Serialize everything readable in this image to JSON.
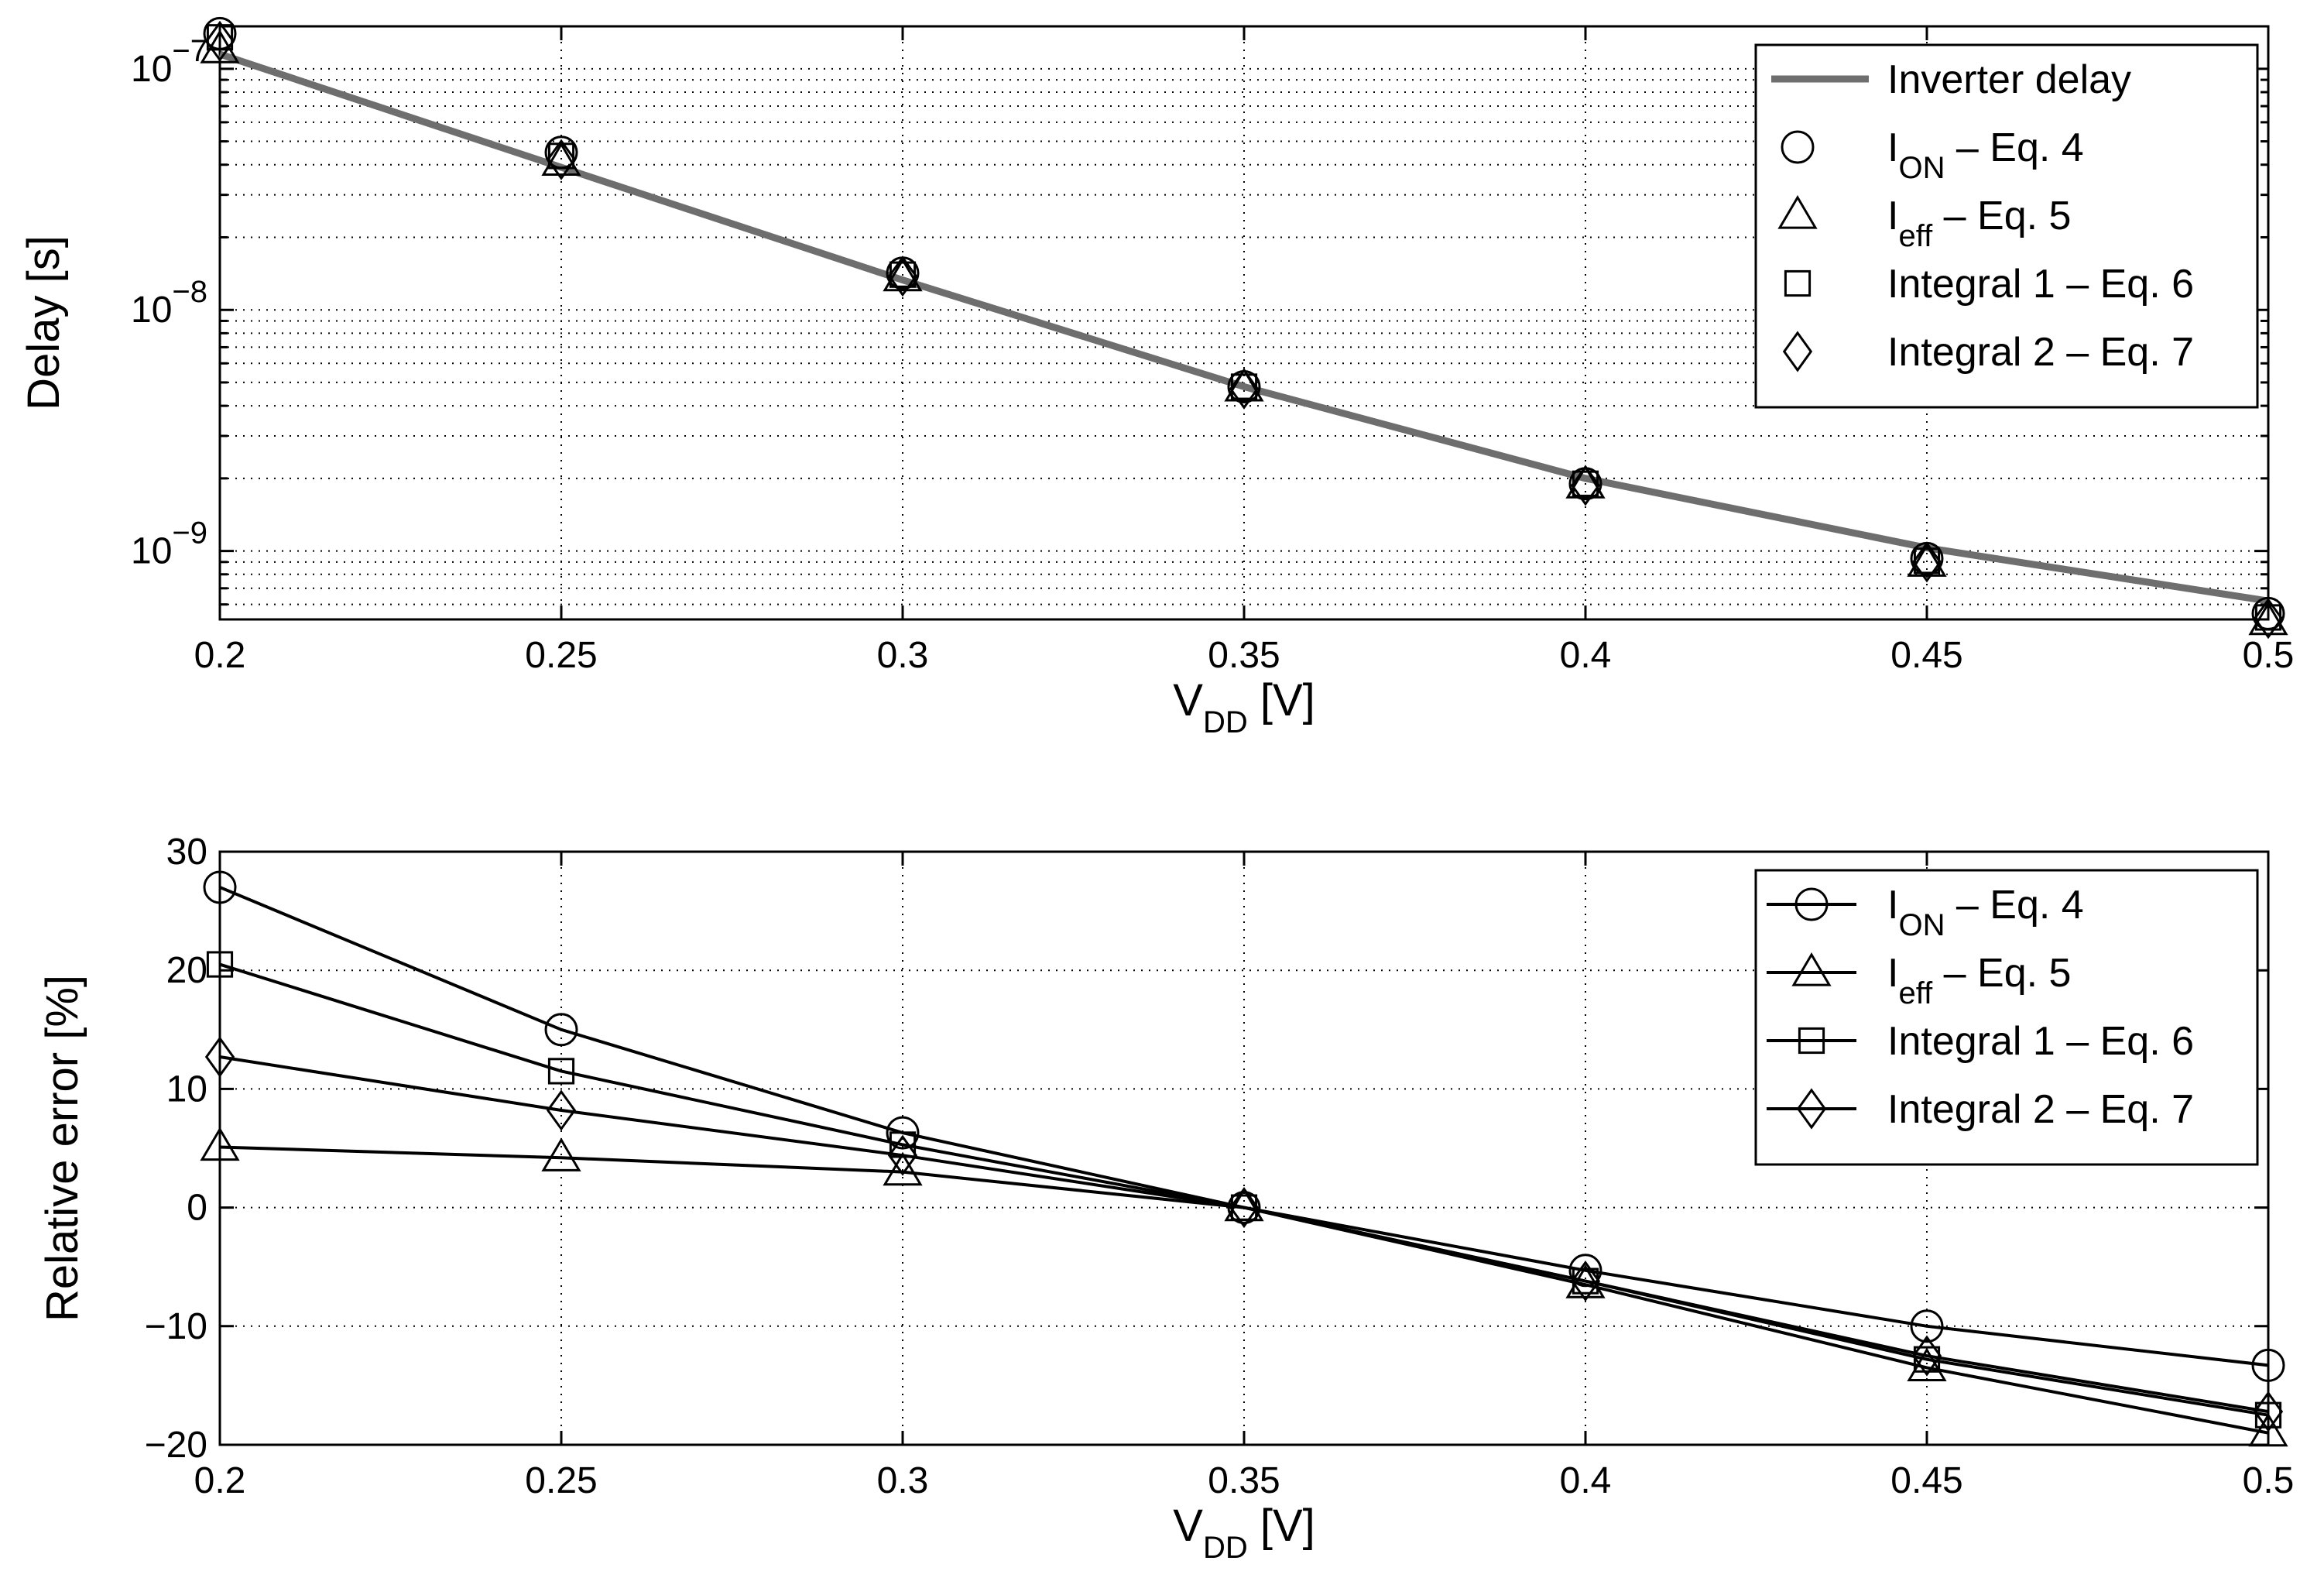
{
  "chart_data": [
    {
      "type": "line",
      "title": "",
      "xlabel": {
        "main": "V",
        "sub": "DD",
        "rest": " [V]"
      },
      "ylabel": "Delay [s]",
      "yscale": "log",
      "xlim": [
        0.2,
        0.5
      ],
      "ylim": [
        5.2e-10,
        1.5e-07
      ],
      "x": [
        0.2,
        0.25,
        0.3,
        0.35,
        0.4,
        0.45,
        0.5
      ],
      "xticklabels": [
        "0.2",
        "0.25",
        "0.3",
        "0.35",
        "0.4",
        "0.45",
        "0.5"
      ],
      "yticks": [
        {
          "value": 1e-07,
          "base": "10",
          "exp": "−7"
        },
        {
          "value": 1e-08,
          "base": "10",
          "exp": "−8"
        },
        {
          "value": 1e-09,
          "base": "10",
          "exp": "−9"
        }
      ],
      "grid": true,
      "legend_position": "top-right",
      "series": [
        {
          "name": "Inverter delay",
          "label": {
            "main": "Inverter delay",
            "sub": "",
            "rest": ""
          },
          "marker": "none",
          "line": true,
          "color": "#6e6e6e",
          "values": [
            1.15e-07,
            3.9e-08,
            1.33e-08,
            4.8e-09,
            2e-09,
            1.03e-09,
            6.2e-10
          ]
        },
        {
          "name": "I_ON – Eq. 4",
          "label": {
            "main": "I",
            "sub": "ON",
            "rest": " – Eq. 4"
          },
          "marker": "circle",
          "line": false,
          "color": "#000000",
          "values": [
            1.4e-07,
            4.5e-08,
            1.42e-08,
            4.8e-09,
            1.9e-09,
            9.3e-10,
            5.5e-10
          ]
        },
        {
          "name": "I_eff – Eq. 5",
          "label": {
            "main": "I",
            "sub": "eff",
            "rest": " – Eq. 5"
          },
          "marker": "triangle",
          "line": false,
          "color": "#000000",
          "values": [
            1.2e-07,
            4.1e-08,
            1.36e-08,
            4.75e-09,
            1.88e-09,
            8.9e-10,
            5.1e-10
          ]
        },
        {
          "name": "Integral 1 – Eq. 6",
          "label": {
            "main": "Integral 1 – Eq. 6",
            "sub": "",
            "rest": ""
          },
          "marker": "square",
          "line": false,
          "color": "#000000",
          "values": [
            1.35e-07,
            4.35e-08,
            1.4e-08,
            4.8e-09,
            1.9e-09,
            9.1e-10,
            5.3e-10
          ]
        },
        {
          "name": "Integral 2 – Eq. 7",
          "label": {
            "main": "Integral 2 – Eq. 7",
            "sub": "",
            "rest": ""
          },
          "marker": "diamond",
          "line": false,
          "color": "#000000",
          "values": [
            1.3e-07,
            4.2e-08,
            1.38e-08,
            4.7e-09,
            1.87e-09,
            9e-10,
            5.25e-10
          ]
        }
      ]
    },
    {
      "type": "line",
      "title": "",
      "xlabel": {
        "main": "V",
        "sub": "DD",
        "rest": " [V]"
      },
      "ylabel": "Relative error [%]",
      "yscale": "linear",
      "xlim": [
        0.2,
        0.5
      ],
      "ylim": [
        -20,
        30
      ],
      "x": [
        0.2,
        0.25,
        0.3,
        0.35,
        0.4,
        0.45,
        0.5
      ],
      "xticklabels": [
        "0.2",
        "0.25",
        "0.3",
        "0.35",
        "0.4",
        "0.45",
        "0.5"
      ],
      "yticks": [
        {
          "value": 30,
          "label": "30"
        },
        {
          "value": 20,
          "label": "20"
        },
        {
          "value": 10,
          "label": "10"
        },
        {
          "value": 0,
          "label": "0"
        },
        {
          "value": -10,
          "label": "−10"
        },
        {
          "value": -20,
          "label": "−20"
        }
      ],
      "grid": true,
      "legend_position": "top-right",
      "series": [
        {
          "name": "I_ON – Eq. 4",
          "label": {
            "main": "I",
            "sub": "ON",
            "rest": " – Eq. 4"
          },
          "marker": "circle",
          "line": true,
          "color": "#000000",
          "values": [
            27,
            15,
            6.3,
            0,
            -5.3,
            -10,
            -13.3
          ]
        },
        {
          "name": "I_eff – Eq. 5",
          "label": {
            "main": "I",
            "sub": "eff",
            "rest": " – Eq. 5"
          },
          "marker": "triangle",
          "line": true,
          "color": "#000000",
          "values": [
            5.1,
            4.2,
            3.0,
            0,
            -6.5,
            -13.5,
            -19
          ]
        },
        {
          "name": "Integral 1 – Eq. 6",
          "label": {
            "main": "Integral 1 – Eq. 6",
            "sub": "",
            "rest": ""
          },
          "marker": "square",
          "line": true,
          "color": "#000000",
          "values": [
            20.5,
            11.5,
            5.3,
            0,
            -6.2,
            -12.8,
            -17.5
          ]
        },
        {
          "name": "Integral 2 – Eq. 7",
          "label": {
            "main": "Integral 2 – Eq. 7",
            "sub": "",
            "rest": ""
          },
          "marker": "diamond",
          "line": true,
          "color": "#000000",
          "values": [
            12.7,
            8.2,
            4.4,
            0,
            -6.2,
            -12.5,
            -17.2
          ]
        }
      ]
    }
  ]
}
